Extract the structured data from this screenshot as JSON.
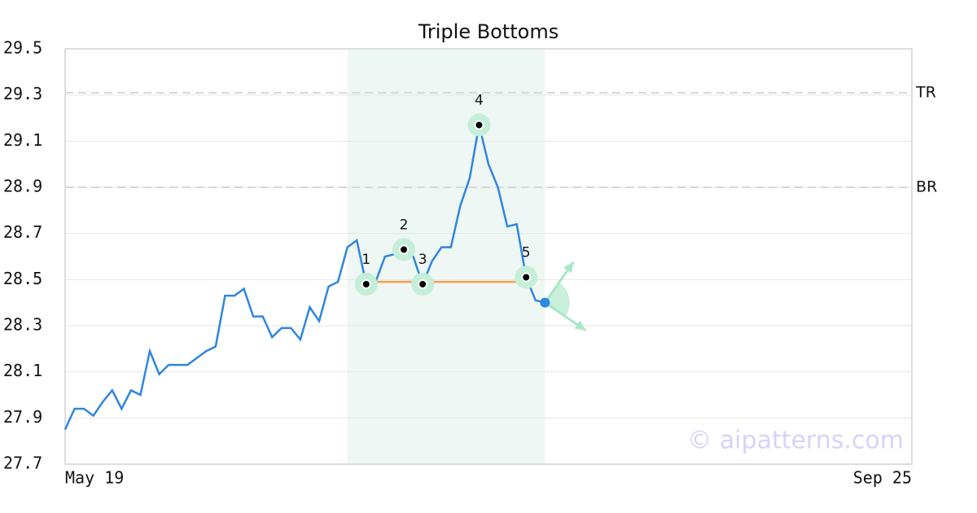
{
  "chart_data": {
    "type": "line",
    "title": "Triple Bottoms",
    "x": [
      0,
      1,
      2,
      3,
      4,
      5,
      6,
      7,
      8,
      9,
      10,
      11,
      12,
      13,
      14,
      15,
      16,
      17,
      18,
      19,
      20,
      21,
      22,
      23,
      24,
      25,
      26,
      27,
      28,
      29,
      30,
      31,
      32,
      33,
      34,
      35,
      36,
      37,
      38,
      39,
      40,
      41,
      42,
      43,
      44,
      45,
      46,
      47,
      48,
      49,
      50,
      51
    ],
    "values": [
      27.85,
      27.94,
      27.94,
      27.91,
      27.97,
      28.02,
      27.94,
      28.02,
      28.0,
      28.19,
      28.09,
      28.13,
      28.13,
      28.13,
      28.16,
      28.19,
      28.21,
      28.43,
      28.43,
      28.46,
      28.34,
      28.34,
      28.25,
      28.29,
      28.29,
      28.24,
      28.38,
      28.32,
      28.47,
      28.49,
      28.64,
      28.67,
      28.48,
      28.49,
      28.6,
      28.61,
      28.63,
      28.6,
      28.48,
      28.58,
      28.64,
      28.64,
      28.82,
      28.94,
      29.17,
      29.0,
      28.9,
      28.73,
      28.74,
      28.51,
      28.41,
      28.4
    ],
    "color": "#2e86de",
    "xlim": [
      0,
      90
    ],
    "xticks": [
      {
        "value": 0,
        "label": "May 19"
      },
      {
        "value": 90,
        "label": "Sep 25"
      }
    ],
    "ylim": [
      27.7,
      29.5
    ],
    "yticks": [
      27.7,
      27.9,
      28.1,
      28.3,
      28.5,
      28.7,
      28.9,
      29.1,
      29.3,
      29.5
    ],
    "grid": true,
    "highlight": [
      30,
      51
    ],
    "levels": [
      {
        "label": "TR",
        "value": 29.31
      },
      {
        "label": "BR",
        "value": 28.9
      }
    ],
    "pattern_points": [
      {
        "label": "1",
        "x": 32,
        "value": 28.48
      },
      {
        "label": "2",
        "x": 36,
        "value": 28.63
      },
      {
        "label": "3",
        "x": 38,
        "value": 28.48
      },
      {
        "label": "4",
        "x": 44,
        "value": 29.17
      },
      {
        "label": "5",
        "x": 49,
        "value": 28.51
      }
    ],
    "neckline": {
      "x": [
        32,
        49
      ],
      "value": 28.49,
      "color": "#f0a050"
    },
    "watermark": "© aipatterns.com"
  }
}
